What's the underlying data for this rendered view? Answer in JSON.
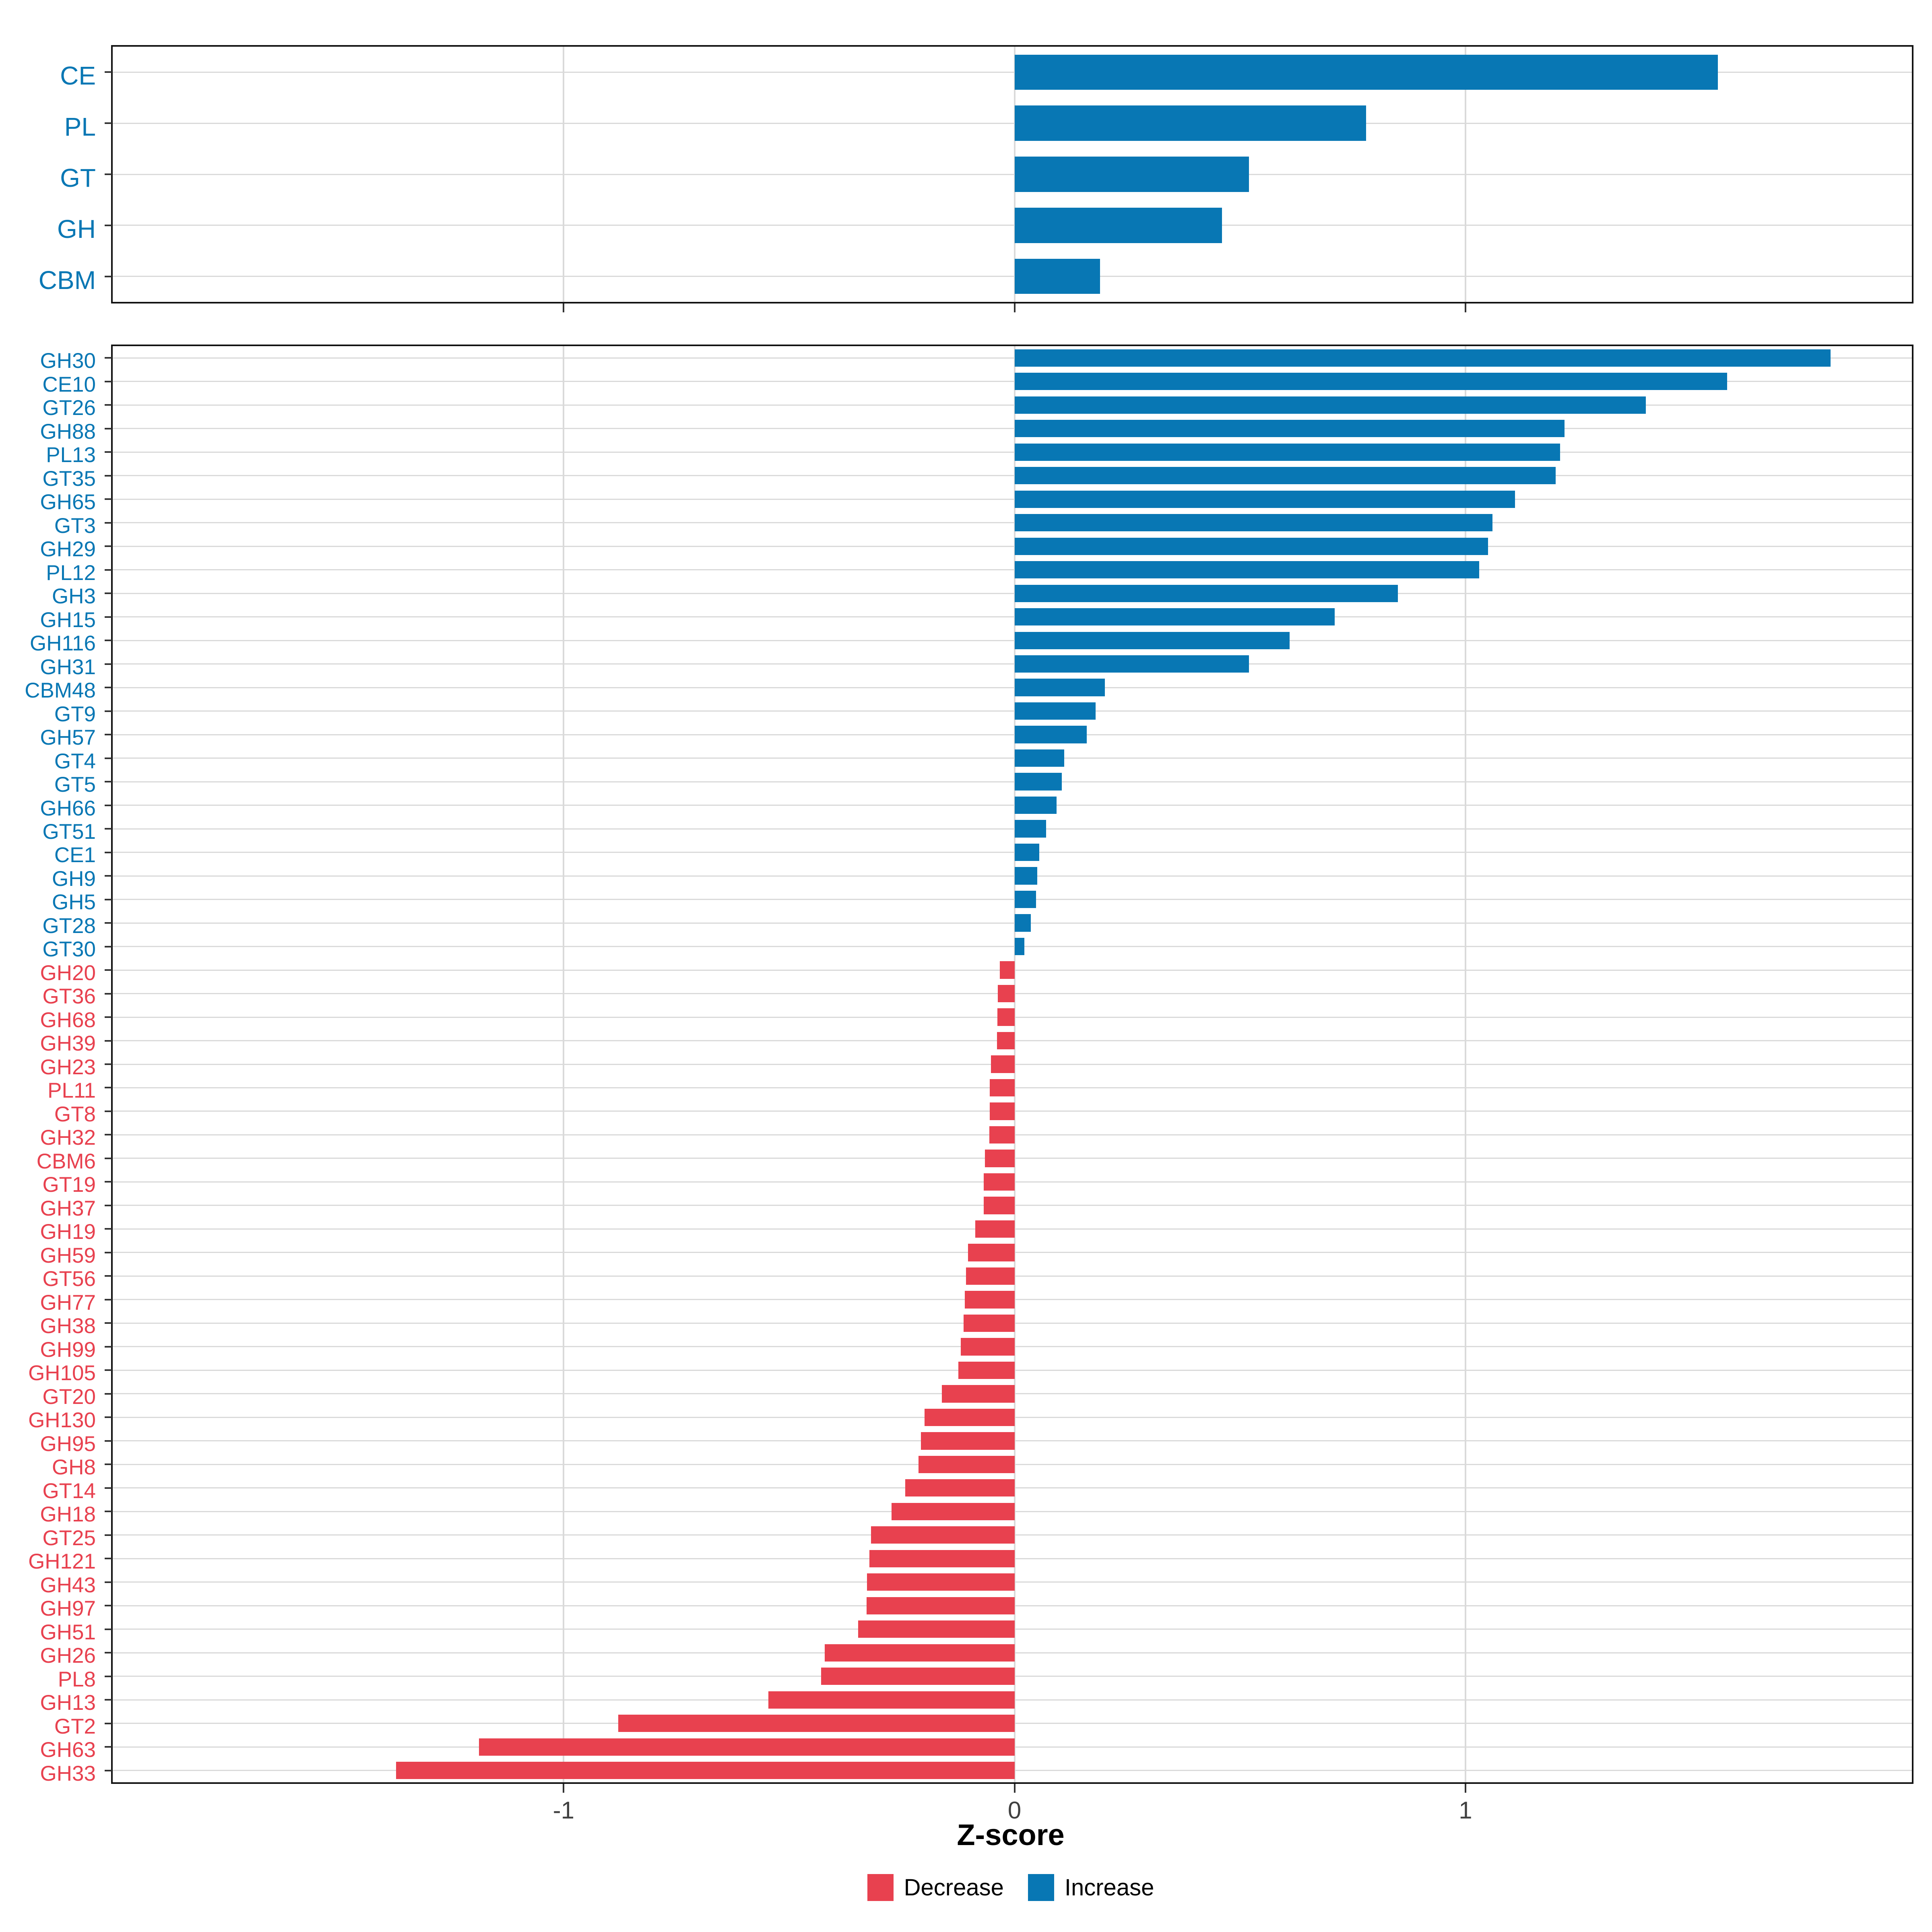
{
  "axis": {
    "title": "Z-score",
    "ticks": [
      -1,
      0,
      1
    ],
    "tick_labels": [
      "-1",
      "0",
      "1"
    ],
    "xlim": [
      -2.0,
      1.99
    ]
  },
  "legend": {
    "decrease_label": "Decrease",
    "increase_label": "Increase"
  },
  "colors": {
    "increase": "#0877B4",
    "decrease": "#E8414F",
    "grid": "#DADADA",
    "panel_border": "#121212",
    "tick": "#333333",
    "tick_label": "#404040"
  },
  "chart_data": [
    {
      "type": "bar",
      "orientation": "horizontal",
      "panel": "top",
      "title": "",
      "xlabel": "Z-score",
      "xlim": [
        -2.0,
        1.99
      ],
      "grid": true,
      "ticks": [
        -1,
        0,
        1
      ],
      "legend_position": "none",
      "categories": [
        "CE",
        "PL",
        "GT",
        "GH",
        "CBM"
      ],
      "values": [
        1.56,
        0.78,
        0.52,
        0.46,
        0.19
      ]
    },
    {
      "type": "bar",
      "orientation": "horizontal",
      "panel": "bottom",
      "title": "",
      "xlabel": "Z-score",
      "xlim": [
        -2.0,
        1.99
      ],
      "grid": true,
      "ticks": [
        -1,
        0,
        1
      ],
      "legend_position": "bottom",
      "categories": [
        "GH30",
        "CE10",
        "GT26",
        "GH88",
        "PL13",
        "GT35",
        "GH65",
        "GT3",
        "GH29",
        "PL12",
        "GH3",
        "GH15",
        "GH116",
        "GH31",
        "CBM48",
        "GT9",
        "GH57",
        "GT4",
        "GT5",
        "GH66",
        "GT51",
        "CE1",
        "GH9",
        "GH5",
        "GT28",
        "GT30",
        "GH20",
        "GT36",
        "GH68",
        "GH39",
        "GH23",
        "PL11",
        "GT8",
        "GH32",
        "CBM6",
        "GT19",
        "GH37",
        "GH19",
        "GH59",
        "GT56",
        "GH77",
        "GH38",
        "GH99",
        "GH105",
        "GT20",
        "GH130",
        "GH95",
        "GH8",
        "GT14",
        "GH18",
        "GT25",
        "GH121",
        "GH43",
        "GH97",
        "GH51",
        "GH26",
        "PL8",
        "GH13",
        "GT2",
        "GH63",
        "GH33"
      ],
      "values": [
        1.81,
        1.58,
        1.4,
        1.22,
        1.21,
        1.2,
        1.11,
        1.06,
        1.05,
        1.03,
        0.85,
        0.71,
        0.61,
        0.52,
        0.2,
        0.18,
        0.16,
        0.11,
        0.105,
        0.093,
        0.07,
        0.055,
        0.05,
        0.048,
        0.036,
        0.022,
        -0.033,
        -0.037,
        -0.038,
        -0.039,
        -0.052,
        -0.055,
        -0.055,
        -0.056,
        -0.066,
        -0.068,
        -0.068,
        -0.087,
        -0.103,
        -0.108,
        -0.11,
        -0.113,
        -0.119,
        -0.125,
        -0.161,
        -0.2,
        -0.208,
        -0.213,
        -0.242,
        -0.273,
        -0.318,
        -0.322,
        -0.327,
        -0.328,
        -0.347,
        -0.421,
        -0.429,
        -0.546,
        -0.879,
        -1.188,
        -1.372
      ]
    }
  ]
}
